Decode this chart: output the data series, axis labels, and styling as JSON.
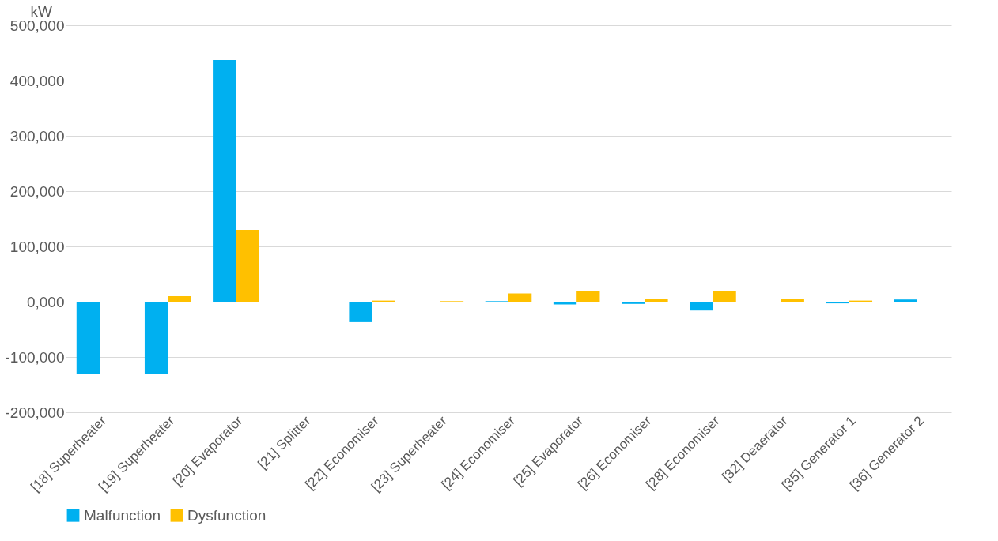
{
  "chart_data": {
    "type": "bar",
    "ylabel": "kW",
    "categories": [
      "[18] Superheater",
      "[19] Superheater",
      "[20] Evaporator",
      "[21] Splitter",
      "[22] Economiser",
      "[23] Superheater",
      "[24] Economiser",
      "[25] Evaporator",
      "[26] Economiser",
      "[28] Economiser",
      "[32] Deaerator",
      "[35] Generator 1",
      "[36] Generator 2"
    ],
    "series": [
      {
        "name": "Malfunction",
        "color": "#00b0f0",
        "values": [
          -131000,
          -131000,
          437000,
          0,
          -37000,
          0,
          1000,
          -5000,
          -4000,
          -16000,
          0,
          -3000,
          4000
        ]
      },
      {
        "name": "Dysfunction",
        "color": "#ffc000",
        "values": [
          0,
          10000,
          130000,
          0,
          2000,
          1000,
          15000,
          20000,
          5000,
          20000,
          5000,
          2000,
          0
        ]
      }
    ],
    "ylim": [
      -200000,
      500000
    ],
    "yticks": [
      {
        "value": -200000,
        "label": "-200,000"
      },
      {
        "value": -100000,
        "label": "-100,000"
      },
      {
        "value": 0,
        "label": "0,000"
      },
      {
        "value": 100000,
        "label": "100,000"
      },
      {
        "value": 200000,
        "label": "200,000"
      },
      {
        "value": 300000,
        "label": "300,000"
      },
      {
        "value": 400000,
        "label": "400,000"
      },
      {
        "value": 500000,
        "label": "500,000"
      }
    ],
    "grid": "y",
    "legend": "bottom"
  }
}
